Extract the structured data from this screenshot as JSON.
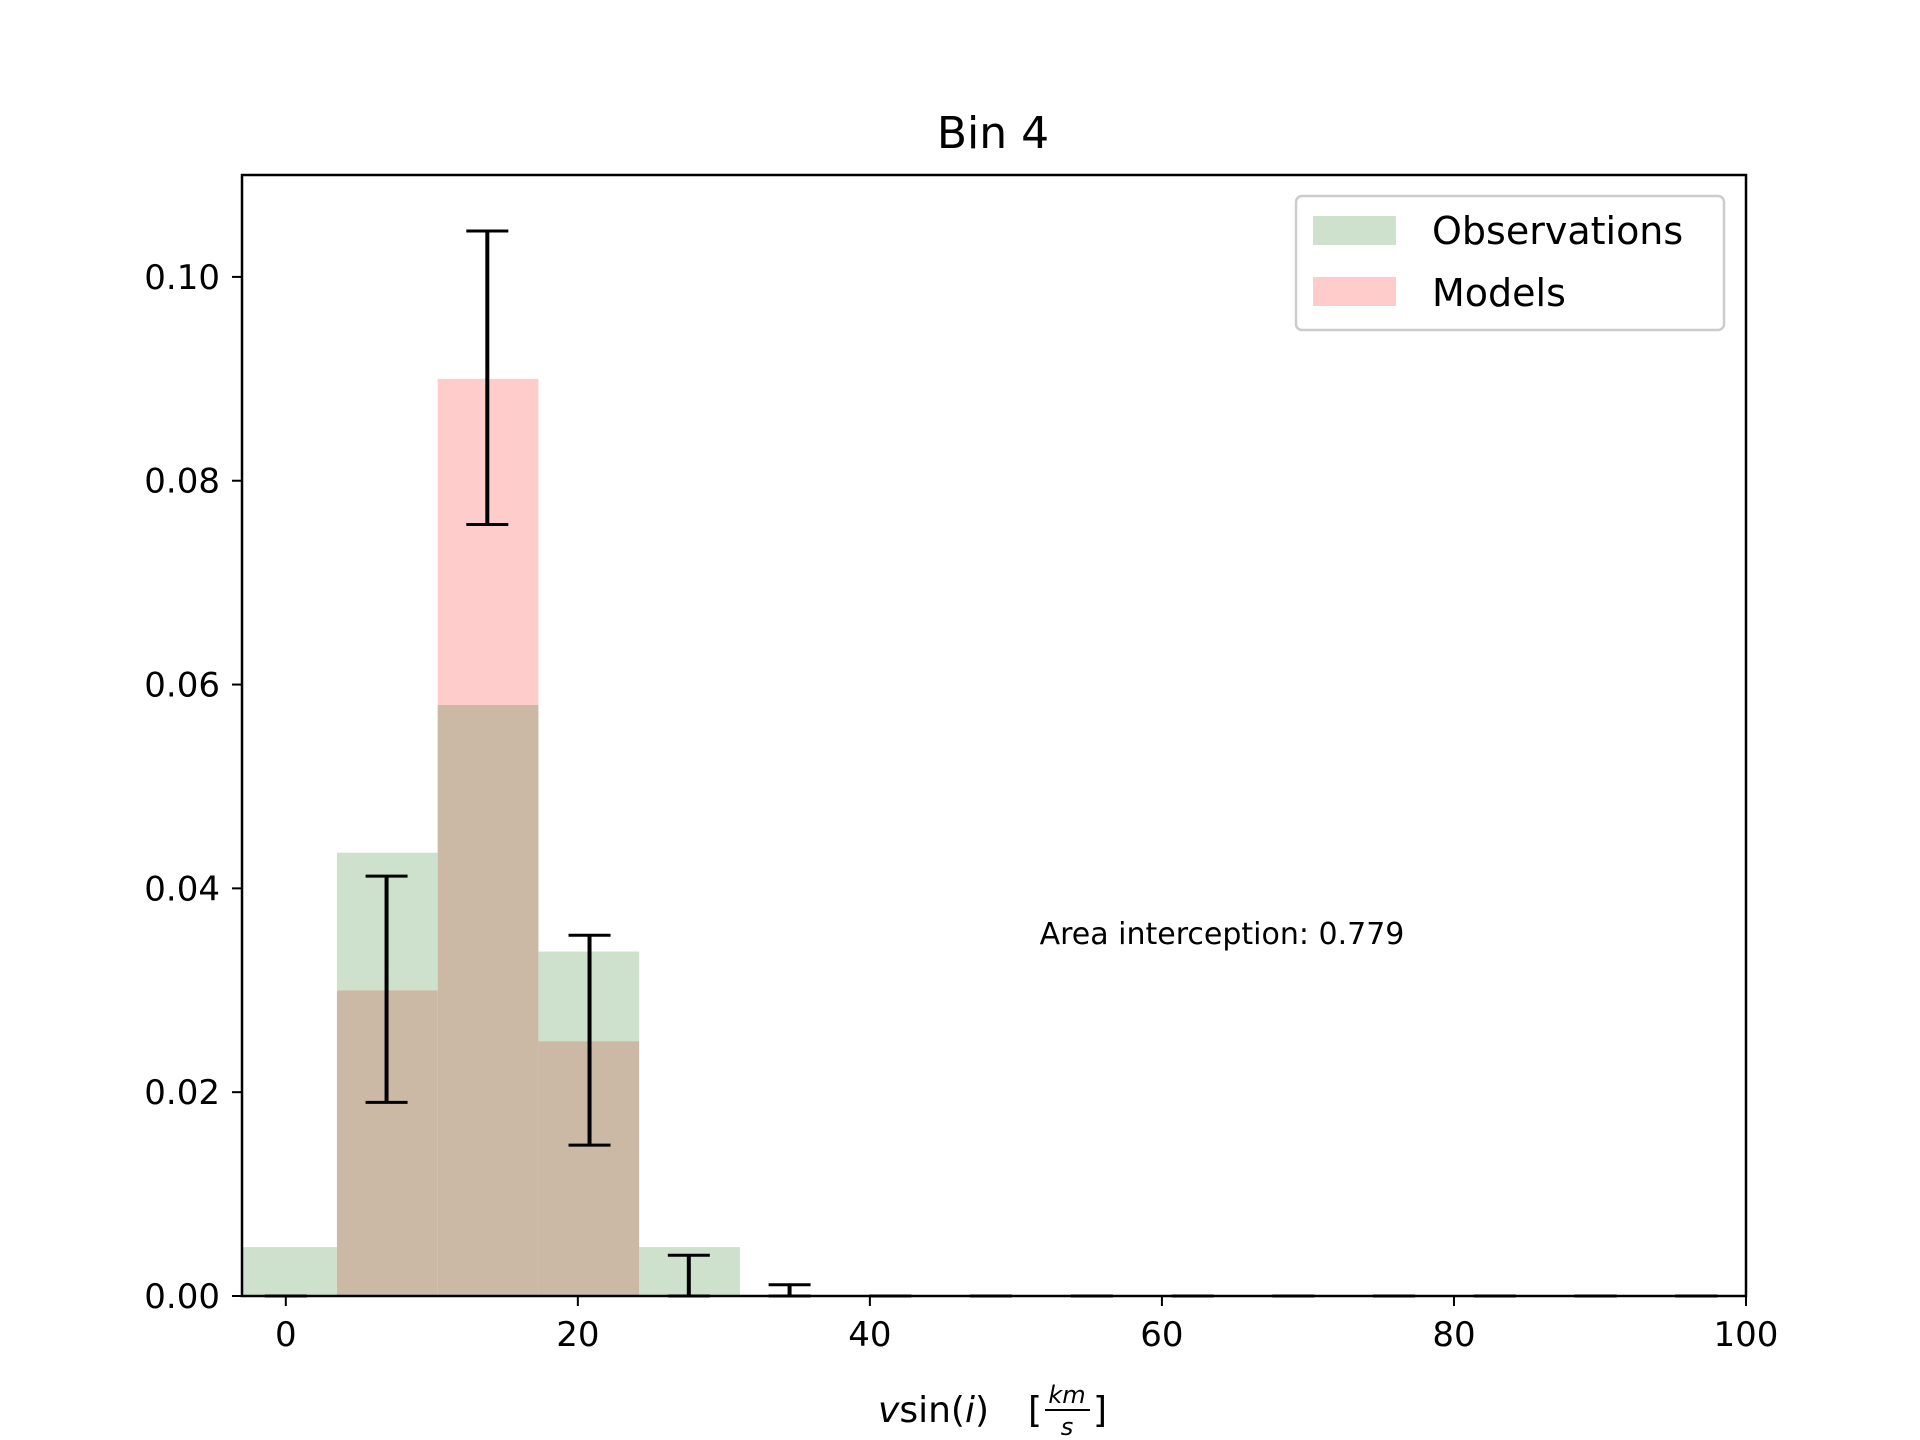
{
  "chart_data": {
    "type": "bar",
    "title": "Bin 4",
    "xlabel": {
      "v": "v",
      "sin": "sin(",
      "i": "i",
      "close": ")",
      "open_bracket": "[",
      "unit_num": "km",
      "unit_den": "s",
      "close_bracket": "]"
    },
    "ylabel": "",
    "xlim": [
      -3,
      100
    ],
    "ylim": [
      0,
      0.11
    ],
    "xticks": [
      0,
      20,
      40,
      60,
      80,
      100
    ],
    "xtick_labels": [
      "0",
      "20",
      "40",
      "60",
      "80",
      "100"
    ],
    "yticks": [
      0,
      0.02,
      0.04,
      0.06,
      0.08,
      0.1
    ],
    "ytick_labels": [
      "0.00",
      "0.02",
      "0.04",
      "0.06",
      "0.08",
      "0.10"
    ],
    "bin_edges": [
      -3.4,
      3.5,
      10.4,
      17.3,
      24.2,
      31.1,
      38.0,
      44.9,
      51.8,
      58.7,
      65.6,
      72.5,
      79.4,
      86.3,
      93.2,
      100.1
    ],
    "series": [
      {
        "name": "Observations",
        "color": "#cde1cd",
        "values": [
          0.0048,
          0.0435,
          0.058,
          0.0338,
          0.0048,
          0,
          0,
          0,
          0,
          0,
          0,
          0,
          0,
          0,
          0
        ]
      },
      {
        "name": "Models",
        "color": "#ffcccc",
        "values": [
          0.0,
          0.03,
          0.09,
          0.025,
          0.0,
          0,
          0,
          0,
          0,
          0,
          0,
          0,
          0,
          0,
          0
        ]
      }
    ],
    "overlap_color": "#cbb8a5",
    "error_bars": [
      {
        "x": 0.0,
        "low": 0.0,
        "high": 0.0
      },
      {
        "x": 6.9,
        "low": 0.019,
        "high": 0.0412
      },
      {
        "x": 13.8,
        "low": 0.0757,
        "high": 0.1045
      },
      {
        "x": 20.8,
        "low": 0.0148,
        "high": 0.0354
      },
      {
        "x": 27.6,
        "low": 0.0,
        "high": 0.004
      },
      {
        "x": 34.5,
        "low": 0.0,
        "high": 0.0011
      },
      {
        "x": 41.4,
        "low": 0.0,
        "high": 0.0
      },
      {
        "x": 48.3,
        "low": 0.0,
        "high": 0.0
      },
      {
        "x": 55.2,
        "low": 0.0,
        "high": 0.0
      },
      {
        "x": 62.1,
        "low": 0.0,
        "high": 0.0
      },
      {
        "x": 69.0,
        "low": 0.0,
        "high": 0.0
      },
      {
        "x": 75.9,
        "low": 0.0,
        "high": 0.0
      },
      {
        "x": 82.8,
        "low": 0.0,
        "high": 0.0
      },
      {
        "x": 89.7,
        "low": 0.0,
        "high": 0.0
      },
      {
        "x": 96.6,
        "low": 0.0,
        "high": 0.0
      }
    ],
    "annotation": "Area interception: 0.779",
    "legend_placement": "top-right",
    "grid": false
  }
}
